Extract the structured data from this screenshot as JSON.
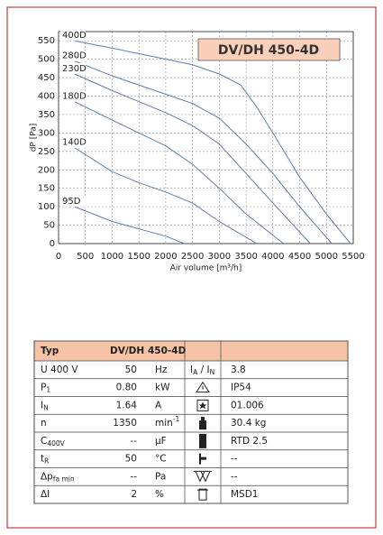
{
  "chart_data": {
    "type": "line",
    "title": "DV/DH 450-4D",
    "x_label": "Air volume [m³/h]",
    "y_label": "dP [Pa]",
    "xlim": [
      0,
      5500
    ],
    "xticks": [
      0,
      500,
      1000,
      1500,
      2000,
      2500,
      3000,
      3500,
      4000,
      4500,
      5000,
      5500
    ],
    "ylim": [
      0,
      575
    ],
    "yticks": [
      0,
      50,
      100,
      150,
      200,
      250,
      300,
      350,
      400,
      450,
      500,
      550
    ],
    "grid": true,
    "series": [
      {
        "name": "400D",
        "color": "#5b7fb3",
        "x": [
          300,
          1000,
          2000,
          2500,
          3000,
          3400,
          3700,
          4000,
          4500,
          5000,
          5450
        ],
        "values": [
          550,
          530,
          500,
          485,
          460,
          430,
          370,
          300,
          180,
          80,
          0
        ]
      },
      {
        "name": "280D",
        "color": "#5b7fb3",
        "x": [
          300,
          1000,
          1500,
          2000,
          2500,
          3000,
          3500,
          4000,
          4500,
          5100
        ],
        "values": [
          495,
          455,
          430,
          405,
          380,
          340,
          270,
          190,
          100,
          0
        ]
      },
      {
        "name": "230D",
        "color": "#5b7fb3",
        "x": [
          300,
          1000,
          1500,
          2000,
          2500,
          3000,
          3500,
          4000,
          4700
        ],
        "values": [
          460,
          415,
          385,
          355,
          320,
          270,
          190,
          110,
          0
        ]
      },
      {
        "name": "180D",
        "color": "#5b7fb3",
        "x": [
          300,
          1000,
          1500,
          2000,
          2500,
          3000,
          3500,
          4200
        ],
        "values": [
          385,
          335,
          300,
          265,
          215,
          150,
          80,
          0
        ]
      },
      {
        "name": "140D",
        "color": "#5b7fb3",
        "x": [
          300,
          1000,
          1500,
          2000,
          2500,
          3000,
          3700
        ],
        "values": [
          260,
          195,
          165,
          140,
          110,
          60,
          0
        ]
      },
      {
        "name": "95D",
        "color": "#5b7fb3",
        "x": [
          300,
          1000,
          1500,
          2000,
          2350
        ],
        "values": [
          100,
          60,
          40,
          20,
          0
        ]
      }
    ]
  },
  "table": {
    "header": [
      "Typ",
      "DV/DH",
      "450-4D"
    ],
    "rows": [
      {
        "label": [
          {
            "text": "U   400   V"
          }
        ],
        "value": "50",
        "unit": [
          {
            "text": "Hz"
          }
        ],
        "param": [
          {
            "text": "I"
          },
          {
            "sub": "A"
          },
          {
            "text": " / I"
          },
          {
            "sub": "N"
          }
        ],
        "param_value": "3.8"
      },
      {
        "label": [
          {
            "text": "P"
          },
          {
            "sub": "1"
          }
        ],
        "value": "0.80",
        "unit": [
          {
            "text": "kW"
          }
        ],
        "param_value": "IP54"
      },
      {
        "label": [
          {
            "text": "I"
          },
          {
            "sub": "N"
          }
        ],
        "value": "1.64",
        "unit": [
          {
            "text": "A"
          }
        ],
        "param_value": "01.006"
      },
      {
        "label": [
          {
            "text": "n"
          }
        ],
        "value": "1350",
        "unit": [
          {
            "text": "min"
          },
          {
            "sup": "-1"
          }
        ],
        "param_value": "30.4 kg"
      },
      {
        "label": [
          {
            "text": "C"
          },
          {
            "sub": "400V"
          }
        ],
        "value": "--",
        "unit": [
          {
            "text": "µF"
          }
        ],
        "param_value": "RTD 2.5"
      },
      {
        "label": [
          {
            "text": "t"
          },
          {
            "sub": "R"
          }
        ],
        "value": "50",
        "unit": [
          {
            "text": "°C"
          }
        ],
        "param_value": "--"
      },
      {
        "label": [
          {
            "text": "Δp"
          },
          {
            "sub": "fa min"
          }
        ],
        "value": "--",
        "unit": [
          {
            "text": "Pa"
          }
        ],
        "param_value": "--"
      },
      {
        "label": [
          {
            "text": "ΔI"
          }
        ],
        "value": "2",
        "unit": [
          {
            "text": "%"
          }
        ],
        "param_value": "MSD1"
      }
    ]
  }
}
